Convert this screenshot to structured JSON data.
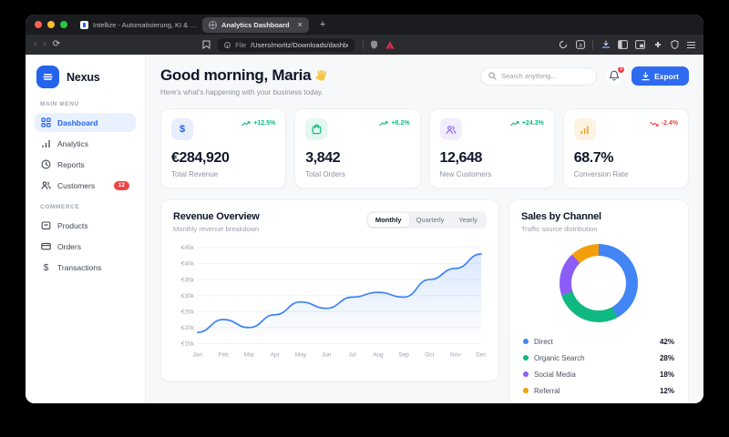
{
  "theme": {
    "accent_blue": "#2563eb",
    "green": "#10b981",
    "purple": "#8b5cf6",
    "orange": "#f59e0b",
    "red": "#ef4444",
    "line_blue": "#3b82f6"
  },
  "browser": {
    "tabs": [
      {
        "title": "Intellize - Automatisierung, KI & D…",
        "active": false
      },
      {
        "title": "Analytics Dashboard",
        "active": true
      }
    ],
    "icons": {
      "back": "‹",
      "forward": "›",
      "reload": "⟳",
      "close": "×",
      "new_tab": "+"
    },
    "url": {
      "scheme_label": "File",
      "path": "/Users/moritz/Downloads/dashboard.html"
    }
  },
  "sidebar": {
    "brand": "Nexus",
    "sections": [
      {
        "label": "MAIN MENU",
        "items": [
          {
            "label": "Dashboard",
            "active": true
          },
          {
            "label": "Analytics"
          },
          {
            "label": "Reports"
          },
          {
            "label": "Customers",
            "badge": "12"
          }
        ]
      },
      {
        "label": "COMMERCE",
        "items": [
          {
            "label": "Products"
          },
          {
            "label": "Orders"
          },
          {
            "label": "Transactions"
          }
        ]
      }
    ]
  },
  "header": {
    "greeting": "Good morning, Maria",
    "greeting_emoji": "👋",
    "subtitle": "Here's what's happening with your business today.",
    "search_placeholder": "Search anything...",
    "notifications_count": "3",
    "export_label": "Export"
  },
  "stats": {
    "cards": [
      {
        "icon": "dollar-icon",
        "accent": "#2563eb",
        "bg": "#e8eefc",
        "trend": "+12.5%",
        "dir": "up",
        "value": "€284,920",
        "label": "Total Revenue"
      },
      {
        "icon": "bag-icon",
        "accent": "#10b981",
        "bg": "#e4f8ef",
        "trend": "+8.2%",
        "dir": "up",
        "value": "3,842",
        "label": "Total Orders"
      },
      {
        "icon": "users-icon",
        "accent": "#8b5cf6",
        "bg": "#f1ecfe",
        "trend": "+24.3%",
        "dir": "up",
        "value": "12,648",
        "label": "New Customers"
      },
      {
        "icon": "bars-icon",
        "accent": "#f59e0b",
        "bg": "#fdf3e0",
        "trend": "-2.4%",
        "dir": "down",
        "value": "68.7%",
        "label": "Conversion Rate"
      }
    ]
  },
  "chart_data": [
    {
      "type": "line",
      "title": "Revenue Overview",
      "subtitle": "Monthly revenue breakdown",
      "tabs": [
        "Monthly",
        "Quarterly",
        "Yearly"
      ],
      "active_tab": "Monthly",
      "x": [
        "Jan",
        "Feb",
        "Mar",
        "Apr",
        "May",
        "Jun",
        "Jul",
        "Aug",
        "Sep",
        "Oct",
        "Nov",
        "Dec"
      ],
      "values": [
        18.5,
        22.5,
        20,
        24,
        28,
        26,
        29.5,
        31,
        29.5,
        35,
        38.5,
        43
      ],
      "unit": "€k",
      "ylim": [
        15,
        45
      ],
      "yticks": [
        15,
        20,
        25,
        30,
        35,
        40,
        45
      ],
      "ytick_labels": [
        "€15k",
        "€20k",
        "€25k",
        "€30k",
        "€35k",
        "€40k",
        "€45k"
      ],
      "color": "#3b82f6",
      "grid": true,
      "legend": "none"
    },
    {
      "type": "donut",
      "title": "Sales by Channel",
      "subtitle": "Traffic source distribution",
      "series": [
        {
          "name": "Direct",
          "pct": 42,
          "pct_label": "42%",
          "color": "#4285f4"
        },
        {
          "name": "Organic Search",
          "pct": 28,
          "pct_label": "28%",
          "color": "#10b981"
        },
        {
          "name": "Social Media",
          "pct": 18,
          "pct_label": "18%",
          "color": "#8b5cf6"
        },
        {
          "name": "Referral",
          "pct": 12,
          "pct_label": "12%",
          "color": "#f59e0b"
        }
      ],
      "legend": "bottom"
    }
  ]
}
